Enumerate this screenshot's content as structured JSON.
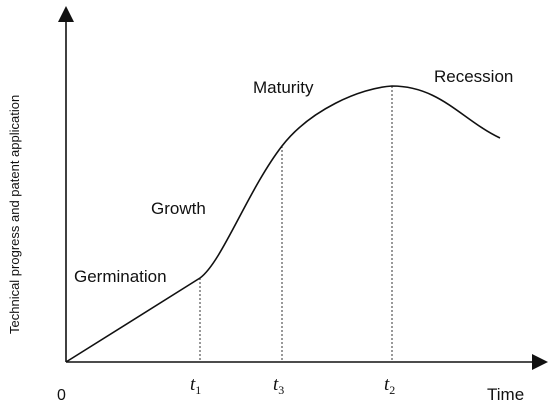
{
  "diagram": {
    "y_axis_label": "Technical progress and patent application",
    "x_axis_label": "Time",
    "origin_label": "0",
    "stages": {
      "germination": "Germination",
      "growth": "Growth",
      "maturity": "Maturity",
      "recession": "Recession"
    },
    "ticks": {
      "t1": {
        "var": "t",
        "sub": "1"
      },
      "t3": {
        "var": "t",
        "sub": "3"
      },
      "t2": {
        "var": "t",
        "sub": "2"
      }
    },
    "colors": {
      "ink": "#111111",
      "background": "#ffffff"
    }
  }
}
